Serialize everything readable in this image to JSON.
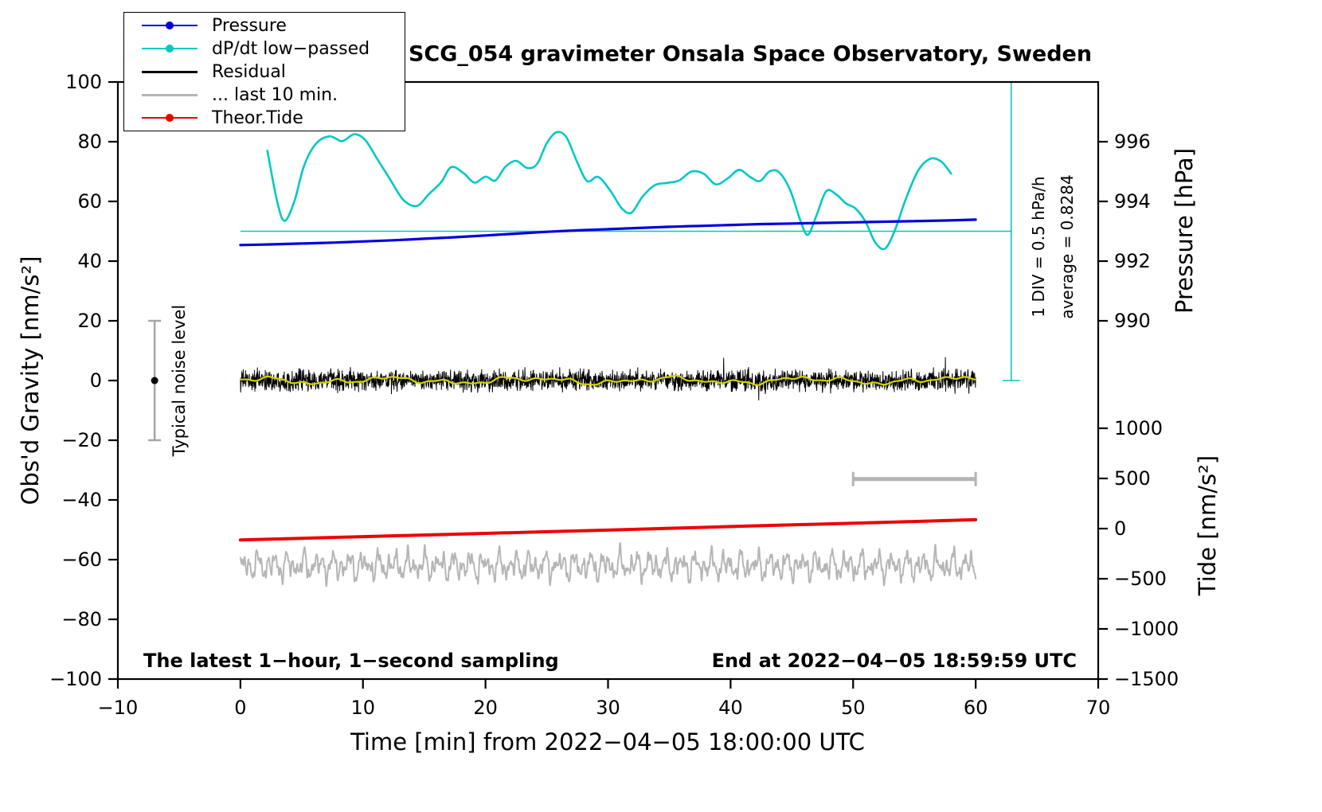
{
  "chart_data": {
    "type": "line",
    "title": "SCG_054 gravimeter Onsala Space Observatory, Sweden",
    "xlabel": "Time [min] from 2022−04−05 18:00:00 UTC",
    "ylabel_left": "Obs'd Gravity [nm/s²]",
    "ylabel_right_top": "Pressure [hPa]",
    "ylabel_right_bottom": "Tide [nm/s²]",
    "footer_left": "The latest 1−hour, 1−second sampling",
    "footer_right": "End at 2022−04−05 18:59:59 UTC",
    "note_div": "1 DIV = 0.5 hPa/h",
    "note_average": "average = 0.8284",
    "xlim": [
      -10,
      70
    ],
    "ylim_left": [
      -100,
      100
    ],
    "x_ticks": [
      -10,
      0,
      10,
      20,
      30,
      40,
      50,
      60,
      70
    ],
    "y_ticks_left": [
      -100,
      -80,
      -60,
      -40,
      -20,
      0,
      20,
      40,
      60,
      80,
      100
    ],
    "pressure_ticks": [
      {
        "label": "996",
        "g": 80
      },
      {
        "label": "994",
        "g": 60
      },
      {
        "label": "992",
        "g": 40
      },
      {
        "label": "990",
        "g": 20
      }
    ],
    "tide_ticks": [
      {
        "label": "1000",
        "g": -16.0
      },
      {
        "label": "500",
        "g": -32.8
      },
      {
        "label": "0",
        "g": -49.6
      },
      {
        "label": "−500",
        "g": -66.4
      },
      {
        "label": "−1000",
        "g": -83.2
      },
      {
        "label": "−1500",
        "g": -100
      }
    ],
    "reference": {
      "color": "#00c9c4",
      "hline_g": 50,
      "hline_x": [
        0,
        62.9
      ],
      "vline_x": 62.9,
      "vline_g": [
        0,
        100
      ]
    },
    "noise_bar": {
      "label": "Typical noise level",
      "x": -7,
      "center_g": 0,
      "half_range_g": 20,
      "color": "#a6a6a6",
      "dot_color": "#000000"
    },
    "scale_bar": {
      "x": [
        50,
        60
      ],
      "g": -33,
      "color": "#b4b4b4"
    },
    "legend": [
      {
        "key": "pressure",
        "label": "Pressure",
        "color": "#0000dd",
        "marker": true,
        "lw": 2.6
      },
      {
        "key": "dpdt-low-passed",
        "label": "dP/dt low−passed",
        "color": "#00c9c4",
        "marker": true,
        "lw": 2.6
      },
      {
        "key": "residual",
        "label": "Residual",
        "color": "#000000",
        "marker": false,
        "lw": 3
      },
      {
        "key": "last-10-min",
        "label": "... last 10 min.",
        "color": "#b6b6b6",
        "marker": false,
        "lw": 3
      },
      {
        "key": "theor-tide",
        "label": "Theor.Tide",
        "color": "#ee0000",
        "marker": true,
        "lw": 2.6
      }
    ],
    "series": {
      "pressure": {
        "name": "Pressure",
        "color": "#0000dd",
        "lw": 3.2,
        "x": [
          0,
          2.5,
          5,
          7.5,
          10,
          12.5,
          15,
          17.5,
          20,
          22.5,
          25,
          27.5,
          30,
          32.5,
          35,
          37.5,
          40,
          42.5,
          45,
          47.5,
          50,
          52.5,
          55,
          57.5,
          60
        ],
        "g": [
          45.4,
          45.6,
          45.9,
          46.2,
          46.6,
          47.0,
          47.5,
          48.0,
          48.6,
          49.2,
          49.8,
          50.3,
          50.7,
          51.1,
          51.5,
          51.8,
          52.1,
          52.4,
          52.6,
          52.8,
          53.0,
          53.2,
          53.4,
          53.6,
          53.9
        ]
      },
      "dpdt_lowpassed": {
        "name": "dP/dt low−passed",
        "color": "#00c9c4",
        "lw": 2.6,
        "x": [
          2.2,
          3.0,
          3.6,
          4.4,
          5.2,
          6.2,
          7.3,
          8.3,
          9.3,
          10.2,
          11.2,
          12.2,
          13.3,
          14.4,
          15.4,
          16.4,
          17.2,
          18.2,
          19.1,
          20.0,
          20.8,
          21.6,
          22.5,
          23.4,
          24.2,
          25.0,
          25.8,
          26.6,
          27.5,
          28.3,
          29.2,
          30.2,
          31.1,
          31.9,
          32.8,
          33.8,
          34.8,
          35.8,
          36.8,
          37.8,
          38.8,
          39.8,
          40.7,
          41.6,
          42.4,
          43.2,
          44.0,
          44.9,
          45.7,
          46.3,
          47.0,
          47.8,
          48.6,
          49.4,
          50.2,
          51.0,
          51.8,
          52.6,
          53.4,
          54.3,
          55.3,
          56.3,
          57.2,
          58.0
        ],
        "g": [
          77,
          60,
          53.5,
          60,
          72,
          79.5,
          81.8,
          80.2,
          82.5,
          80.5,
          74,
          67.5,
          60.5,
          58.5,
          62.5,
          66.5,
          71.5,
          69.5,
          66.3,
          68.3,
          67.0,
          71.5,
          73.6,
          71.2,
          72.5,
          79.5,
          83.2,
          81.5,
          73.0,
          66.8,
          68.2,
          63.5,
          57.8,
          56.2,
          61.5,
          65.4,
          66.2,
          67.0,
          70.0,
          69.3,
          65.7,
          67.8,
          70.6,
          68.2,
          66.8,
          70.1,
          69.6,
          63.4,
          53.5,
          48.8,
          55.2,
          63.4,
          62.4,
          59.4,
          57.6,
          53.3,
          46.3,
          44.2,
          50.3,
          60.8,
          70.3,
          74.3,
          73.3,
          69.3
        ]
      },
      "theor_tide": {
        "name": "Theor.Tide",
        "color": "#ee0000",
        "lw": 4,
        "x": [
          0,
          10,
          20,
          30,
          40,
          50,
          60
        ],
        "g": [
          -53.4,
          -52.3,
          -51.2,
          -50.1,
          -48.9,
          -47.8,
          -46.6
        ]
      },
      "residual": {
        "name": "Residual",
        "color": "#000000",
        "lw": 1,
        "x_range": [
          0,
          60
        ],
        "seed": 1234,
        "n": 2600,
        "amp": 3.3,
        "spike_prob": 0.012,
        "spike_gain": 2.2
      },
      "residual_lowpass": {
        "name": "Residual low-passed",
        "color": "#d4d400",
        "lw": 2.2,
        "x_range": [
          0,
          60
        ],
        "offset": 0,
        "harmonics": [
          [
            0.75,
            0.55,
            1.2
          ],
          [
            0.5,
            1.35,
            4.0
          ],
          [
            0.35,
            2.3,
            2.2
          ],
          [
            0.25,
            4.3,
            5.1
          ]
        ]
      },
      "last_10_min": {
        "name": "... last 10 min.",
        "color": "#b6b6b6",
        "lw": 2,
        "x_range": [
          0,
          60
        ],
        "offset": -62,
        "harmonics": [
          [
            2.3,
            5.1,
            0.5
          ],
          [
            1.9,
            8.3,
            2.1
          ],
          [
            1.5,
            12.7,
            4.2
          ],
          [
            1.1,
            19.3,
            1.0
          ],
          [
            0.9,
            27.9,
            3.3
          ],
          [
            0.7,
            41.0,
            0.7
          ]
        ]
      }
    }
  }
}
